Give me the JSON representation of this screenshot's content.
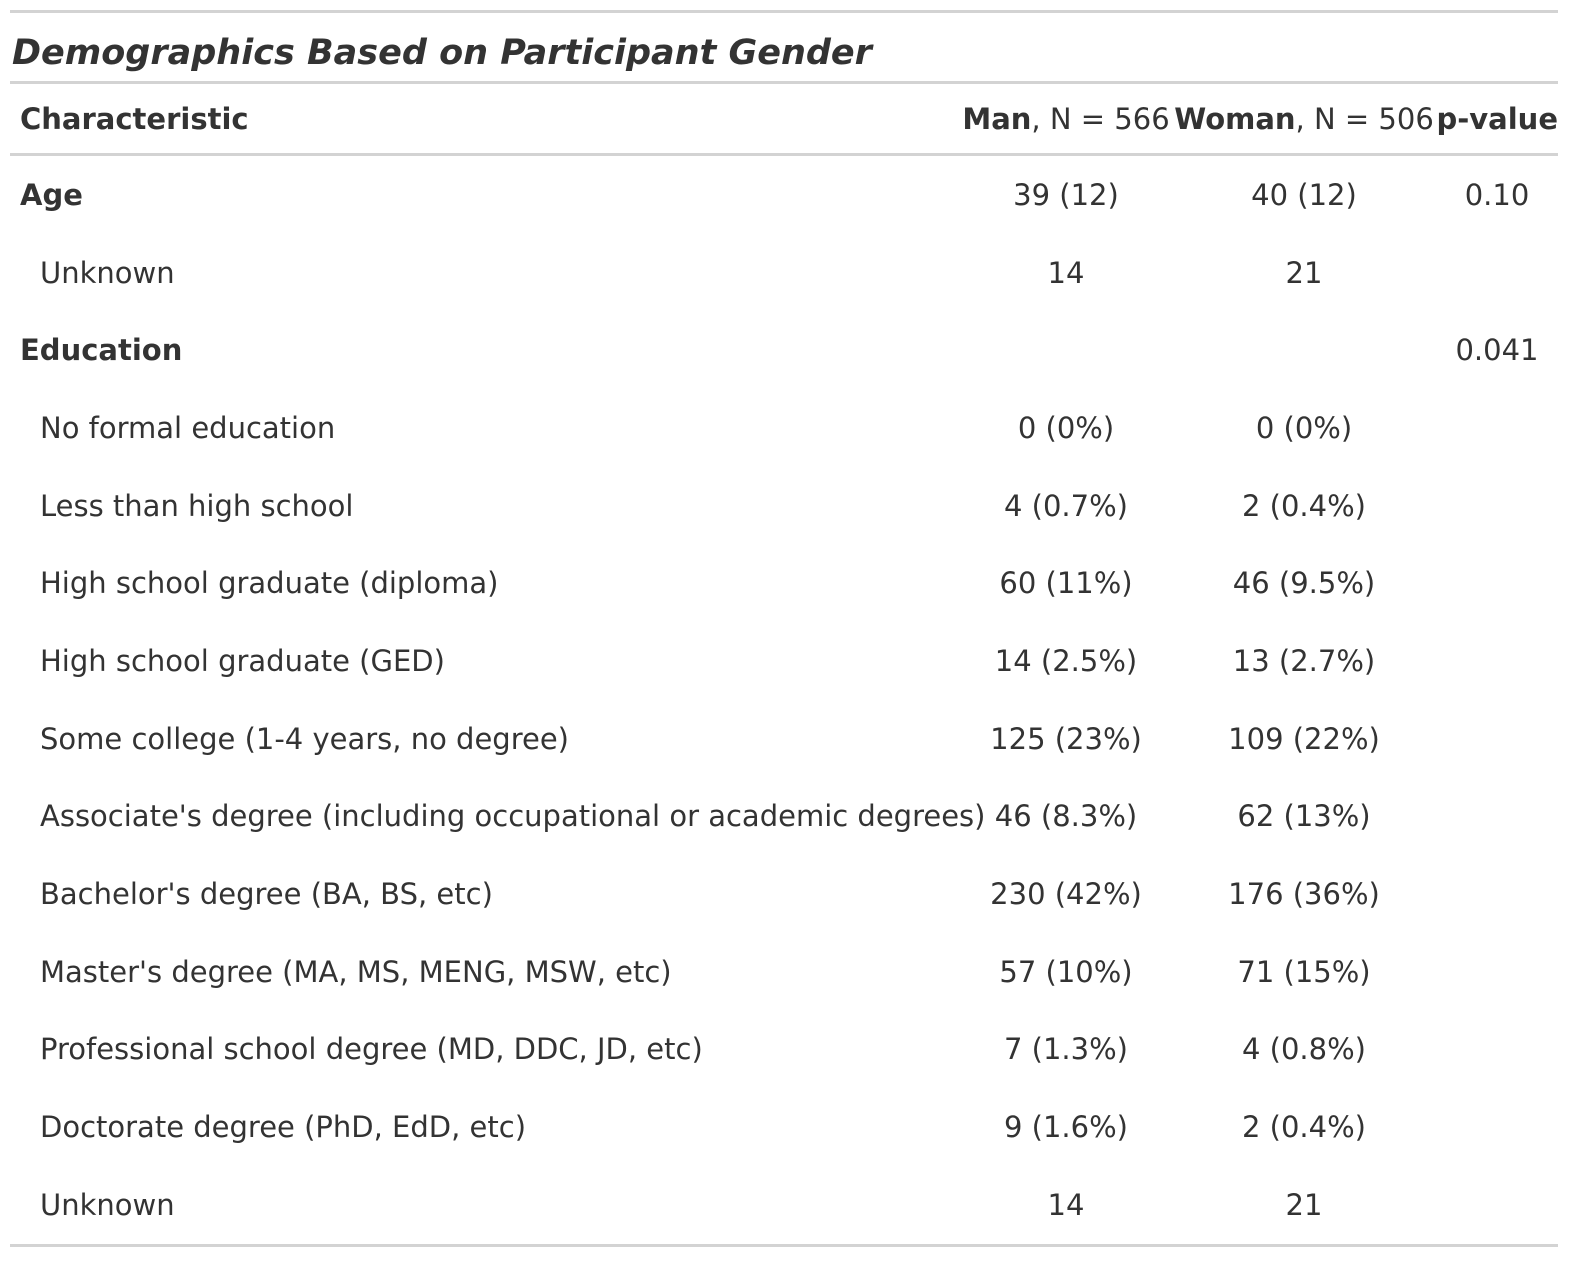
{
  "title": "Demographics Based on Participant Gender",
  "headers": {
    "characteristic": "Characteristic",
    "man_bold": "Man",
    "man_rest": ", N = 566",
    "woman_bold": "Woman",
    "woman_rest": ", N = 506",
    "p_value": "p-value"
  },
  "rows": [
    {
      "label": "Age",
      "man": "39 (12)",
      "woman": "40 (12)",
      "p": "0.10"
    },
    {
      "label": "Unknown",
      "man": "14",
      "woman": "21",
      "p": ""
    },
    {
      "label": "Education",
      "man": "",
      "woman": "",
      "p": "0.041"
    },
    {
      "label": "No formal education",
      "man": "0 (0%)",
      "woman": "0 (0%)",
      "p": ""
    },
    {
      "label": "Less than high school",
      "man": "4 (0.7%)",
      "woman": "2 (0.4%)",
      "p": ""
    },
    {
      "label": "High school graduate (diploma)",
      "man": "60 (11%)",
      "woman": "46 (9.5%)",
      "p": ""
    },
    {
      "label": "High school graduate (GED)",
      "man": "14 (2.5%)",
      "woman": "13 (2.7%)",
      "p": ""
    },
    {
      "label": "Some college (1-4 years, no degree)",
      "man": "125 (23%)",
      "woman": "109 (22%)",
      "p": ""
    },
    {
      "label": "Associate's degree (including occupational or academic degrees)",
      "man": "46 (8.3%)",
      "woman": "62 (13%)",
      "p": ""
    },
    {
      "label": "Bachelor's degree (BA, BS, etc)",
      "man": "230 (42%)",
      "woman": "176 (36%)",
      "p": ""
    },
    {
      "label": "Master's degree (MA, MS, MENG, MSW, etc)",
      "man": "57 (10%)",
      "woman": "71 (15%)",
      "p": ""
    },
    {
      "label": "Professional school degree (MD, DDC, JD, etc)",
      "man": "7 (1.3%)",
      "woman": "4 (0.8%)",
      "p": ""
    },
    {
      "label": "Doctorate degree (PhD, EdD, etc)",
      "man": "9 (1.6%)",
      "woman": "2 (0.4%)",
      "p": ""
    },
    {
      "label": "Unknown",
      "man": "14",
      "woman": "21",
      "p": ""
    }
  ]
}
